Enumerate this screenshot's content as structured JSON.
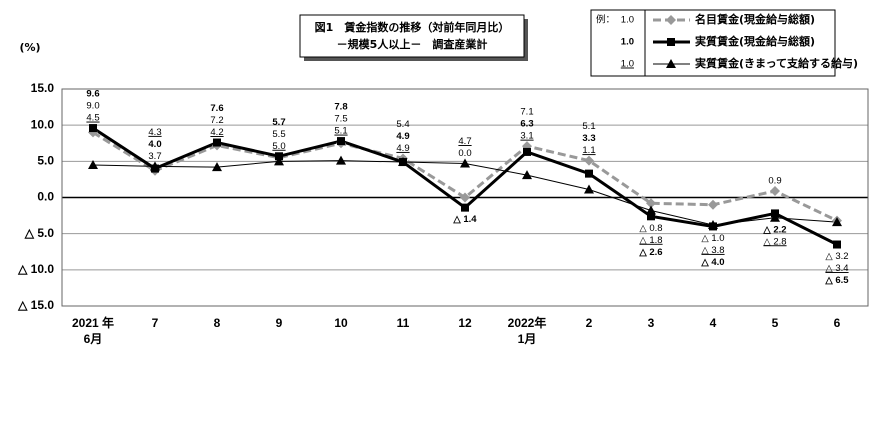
{
  "chart_data": {
    "type": "line",
    "title": "図1　賃金指数の推移（対前年同月比）",
    "subtitle": "－規模5人以上－　調査産業計",
    "y_label": "(%)",
    "legend_prefix": "例：",
    "categories": [
      [
        "2021 年",
        "6月"
      ],
      [
        "7"
      ],
      [
        "8"
      ],
      [
        "9"
      ],
      [
        "10"
      ],
      [
        "11"
      ],
      [
        "12"
      ],
      [
        "2022年",
        "1月"
      ],
      [
        "2"
      ],
      [
        "3"
      ],
      [
        "4"
      ],
      [
        "5"
      ],
      [
        "6"
      ]
    ],
    "ylim": [
      -15,
      15
    ],
    "yticks": [
      {
        "value": 15,
        "label": "15.0"
      },
      {
        "value": 10,
        "label": "10.0"
      },
      {
        "value": 5,
        "label": "5.0"
      },
      {
        "value": 0,
        "label": "0.0"
      },
      {
        "value": -5,
        "label": "△ 5.0"
      },
      {
        "value": -10,
        "label": "△ 10.0"
      },
      {
        "value": -15,
        "label": "△ 15.0"
      }
    ],
    "grid": true,
    "series": [
      {
        "name": "名目賃金(現金給与総額)",
        "color": "#999999",
        "line_style": "dashed",
        "marker": "diamond",
        "label_style": "normal",
        "label_sample": "1.0",
        "values": [
          9.0,
          3.7,
          7.2,
          5.5,
          7.5,
          5.4,
          0.0,
          7.1,
          5.1,
          -0.8,
          -1.0,
          0.9,
          -3.2
        ],
        "value_labels": [
          "9.0",
          "3.7",
          "7.2",
          "5.5",
          "7.5",
          "5.4",
          "0.0",
          "7.1",
          "5.1",
          "△ 0.8",
          "△ 1.0",
          "0.9",
          "△ 3.2"
        ]
      },
      {
        "name": "実質賃金(現金給与総額)",
        "color": "#000000",
        "line_style": "thick",
        "marker": "square",
        "label_style": "bold",
        "label_sample": "1.0",
        "values": [
          9.6,
          4.0,
          7.6,
          5.7,
          7.8,
          4.9,
          -1.4,
          6.3,
          3.3,
          -2.6,
          -4.0,
          -2.2,
          -6.5
        ],
        "value_labels": [
          "9.6",
          "4.0",
          "7.6",
          "5.7",
          "7.8",
          "4.9",
          "△ 1.4",
          "6.3",
          "3.3",
          "△ 2.6",
          "△ 4.0",
          "△ 2.2",
          "△ 6.5"
        ]
      },
      {
        "name": "実質賃金(きまって支給する給与)",
        "color": "#000000",
        "line_style": "thin",
        "marker": "triangle",
        "label_style": "underline",
        "label_sample": "1.0",
        "values": [
          4.5,
          4.3,
          4.2,
          5.0,
          5.1,
          4.9,
          4.7,
          3.1,
          1.1,
          -1.8,
          -3.8,
          -2.8,
          -3.4
        ],
        "value_labels": [
          "4.5",
          "4.3",
          "4.2",
          "5.0",
          "5.1",
          "4.9",
          "4.7",
          "3.1",
          "1.1",
          "△ 1.8",
          "△ 3.8",
          "△ 2.8",
          "△ 3.4"
        ]
      }
    ]
  }
}
